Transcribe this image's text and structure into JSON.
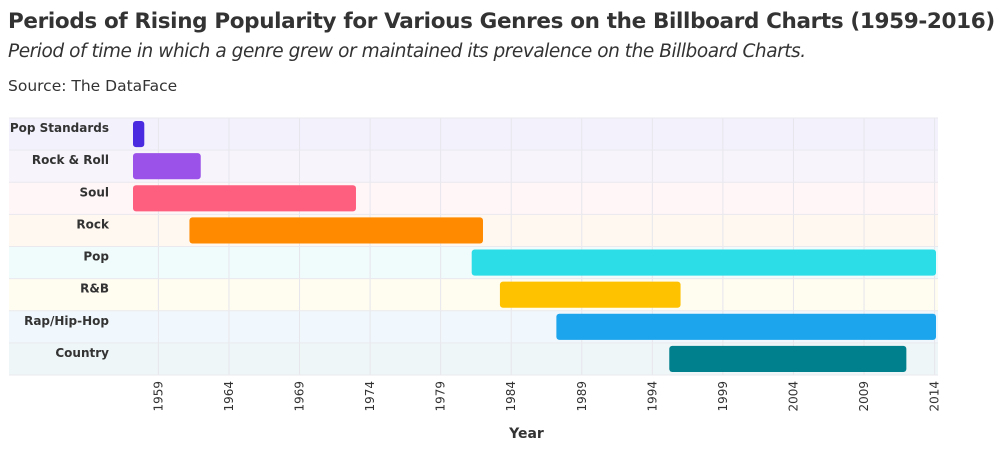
{
  "chart_data": {
    "type": "bar",
    "orientation": "horizontal-range",
    "title": "Periods of Rising Popularity for Various Genres on the Billboard Charts (1959-2016)",
    "subtitle": "Period of time in which a genre grew or maintained its prevalence on the Billboard Charts.",
    "source": "Source: The DataFace",
    "xlabel": "Year",
    "ylabel": "",
    "xlim": [
      1957.2,
      2014.1
    ],
    "xticks": [
      "1959",
      "1964",
      "1969",
      "1974",
      "1979",
      "1984",
      "1989",
      "1994",
      "1999",
      "2004",
      "2009",
      "2014"
    ],
    "grid": true,
    "categories": [
      "Pop Standards",
      "Rock & Roll",
      "Soul",
      "Rock",
      "Pop",
      "R&B",
      "Rap/Hip-Hop",
      "Country"
    ],
    "series": [
      {
        "name": "Pop Standards",
        "start": 1957.2,
        "end": 1958.0,
        "color": "#4A2BE0",
        "band_color": "#F3F1FC"
      },
      {
        "name": "Rock & Roll",
        "start": 1957.2,
        "end": 1962.0,
        "color": "#9B52E8",
        "band_color": "#F8F4FC"
      },
      {
        "name": "Soul",
        "start": 1957.2,
        "end": 1973.0,
        "color": "#FF5F7E",
        "band_color": "#FFF6F8"
      },
      {
        "name": "Rock",
        "start": 1961.2,
        "end": 1982.0,
        "color": "#FF8A00",
        "band_color": "#FFF8F0"
      },
      {
        "name": "Pop",
        "start": 1981.2,
        "end": 2014.1,
        "color": "#2CDCE6",
        "band_color": "#F0FBFB"
      },
      {
        "name": "R&B",
        "start": 1983.2,
        "end": 1996.0,
        "color": "#FFC200",
        "band_color": "#FFFCF0"
      },
      {
        "name": "Rap/Hip-Hop",
        "start": 1987.2,
        "end": 2014.1,
        "color": "#1CA4EC",
        "band_color": "#F1F8FD"
      },
      {
        "name": "Country",
        "start": 1995.2,
        "end": 2012.0,
        "color": "#00808C",
        "band_color": "#EFF6F7"
      }
    ]
  }
}
